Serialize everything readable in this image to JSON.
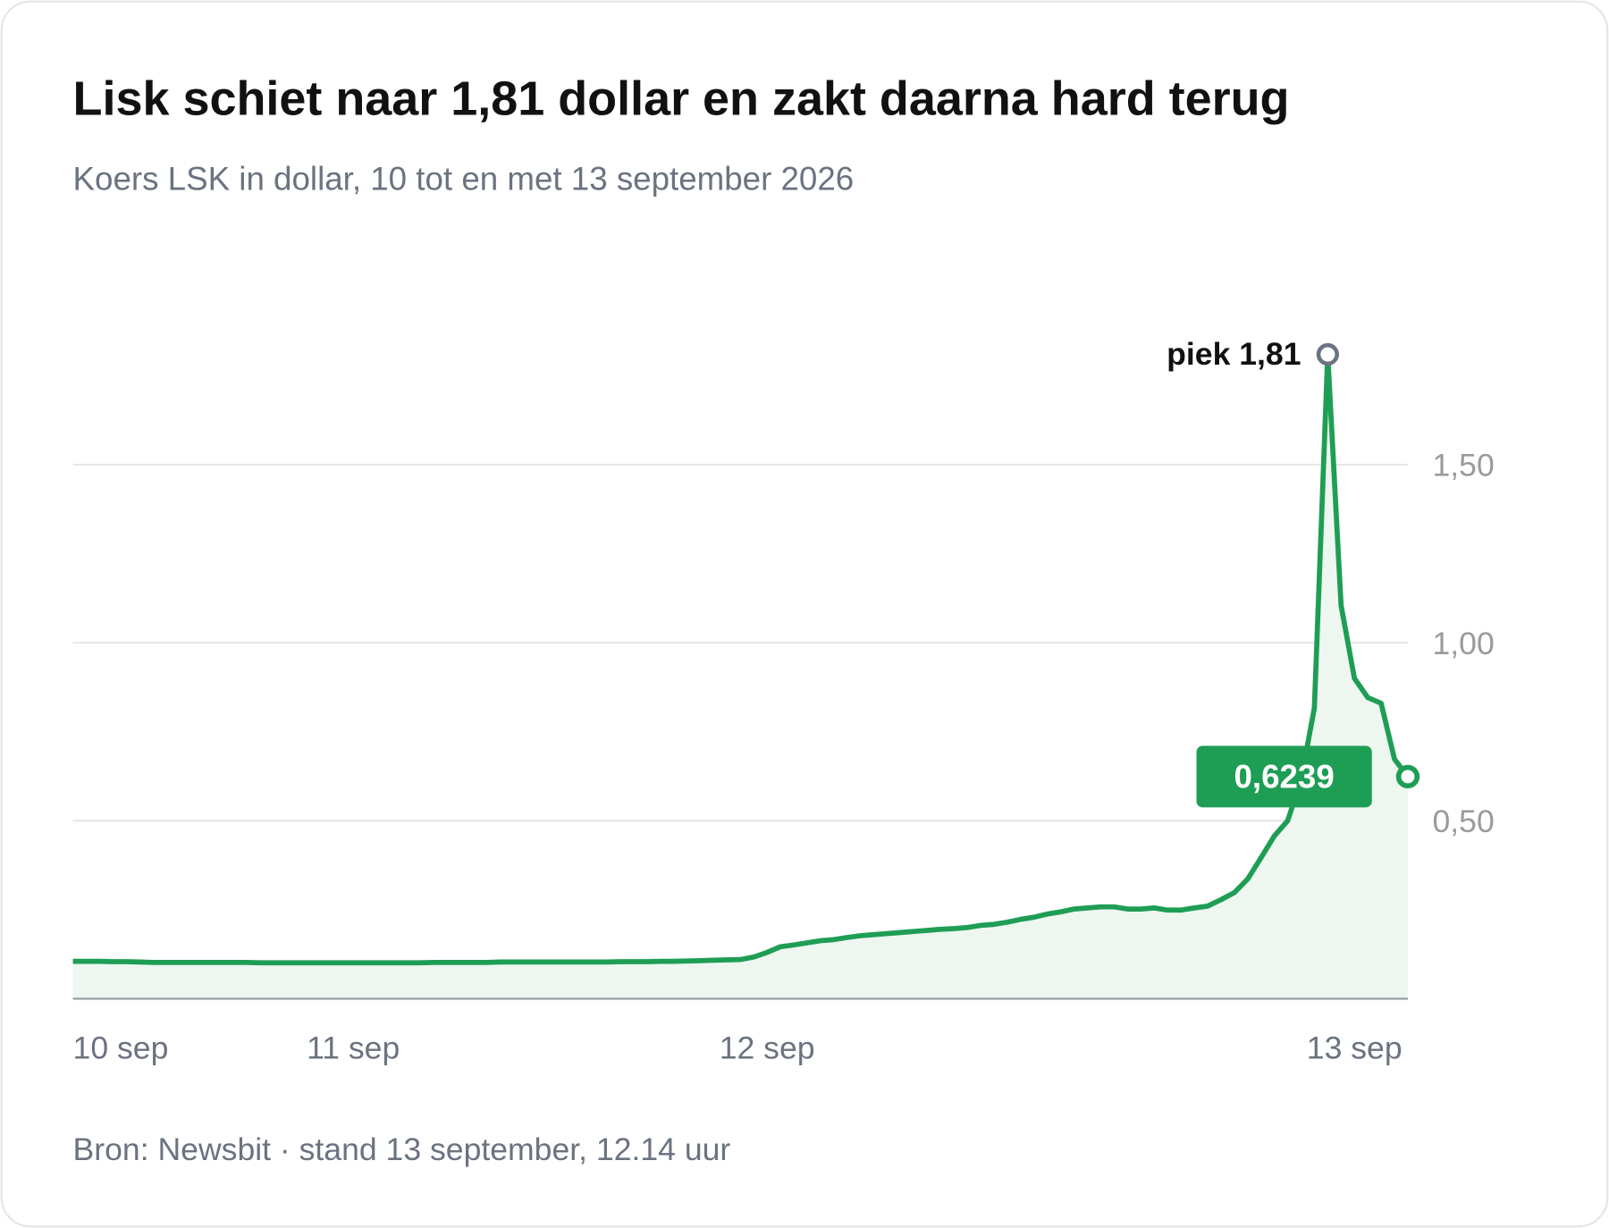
{
  "chart_data": {
    "type": "line",
    "title": "Lisk schiet naar 1,81 dollar en zakt daarna hard terug",
    "subtitle": "Koers LSK in dollar, 10 tot en met 13 september 2026",
    "source": "Bron: Newsbit · stand 13 september, 12.14 uur",
    "peak_label": "piek 1,81",
    "last_label": "0,6239",
    "color": "#1e9e55",
    "categories": [
      "10 sep",
      null,
      null,
      null,
      null,
      null,
      null,
      null,
      null,
      null,
      null,
      null,
      null,
      null,
      null,
      null,
      null,
      null,
      null,
      null,
      null,
      "11 sep",
      null,
      null,
      null,
      null,
      null,
      null,
      null,
      null,
      null,
      null,
      null,
      null,
      null,
      null,
      null,
      null,
      null,
      null,
      null,
      null,
      null,
      null,
      null,
      null,
      null,
      null,
      null,
      null,
      null,
      null,
      "12 sep",
      null,
      null,
      null,
      null,
      null,
      null,
      null,
      null,
      null,
      null,
      null,
      null,
      null,
      null,
      null,
      null,
      null,
      null,
      null,
      null,
      null,
      null,
      null,
      null,
      null,
      null,
      null,
      null,
      null,
      null,
      null,
      null,
      null,
      null,
      null,
      null,
      null,
      null,
      null,
      null,
      null,
      null,
      null,
      "13 sep",
      null,
      null,
      null,
      null
    ],
    "values": [
      0.105,
      0.105,
      0.105,
      0.104,
      0.104,
      0.103,
      0.102,
      0.102,
      0.102,
      0.102,
      0.102,
      0.102,
      0.102,
      0.102,
      0.101,
      0.101,
      0.101,
      0.101,
      0.101,
      0.101,
      0.101,
      0.101,
      0.101,
      0.101,
      0.101,
      0.101,
      0.101,
      0.102,
      0.102,
      0.102,
      0.102,
      0.102,
      0.103,
      0.103,
      0.103,
      0.103,
      0.103,
      0.103,
      0.103,
      0.103,
      0.103,
      0.104,
      0.104,
      0.104,
      0.105,
      0.105,
      0.106,
      0.107,
      0.108,
      0.109,
      0.11,
      0.117,
      0.13,
      0.146,
      0.151,
      0.157,
      0.163,
      0.166,
      0.172,
      0.177,
      0.18,
      0.183,
      0.186,
      0.189,
      0.192,
      0.195,
      0.197,
      0.2,
      0.206,
      0.209,
      0.215,
      0.223,
      0.229,
      0.238,
      0.244,
      0.252,
      0.255,
      0.258,
      0.258,
      0.252,
      0.252,
      0.255,
      0.249,
      0.249,
      0.255,
      0.26,
      0.278,
      0.298,
      0.336,
      0.396,
      0.457,
      0.5,
      0.615,
      0.817,
      1.81,
      1.105,
      0.9,
      0.846,
      0.83,
      0.673,
      0.6239
    ],
    "ylim": [
      0,
      2
    ],
    "yticks": [
      {
        "value": 0.5,
        "label": "0,50"
      },
      {
        "value": 1,
        "label": "1,00"
      },
      {
        "value": 1.5,
        "label": "1,50"
      }
    ],
    "grid": true
  }
}
